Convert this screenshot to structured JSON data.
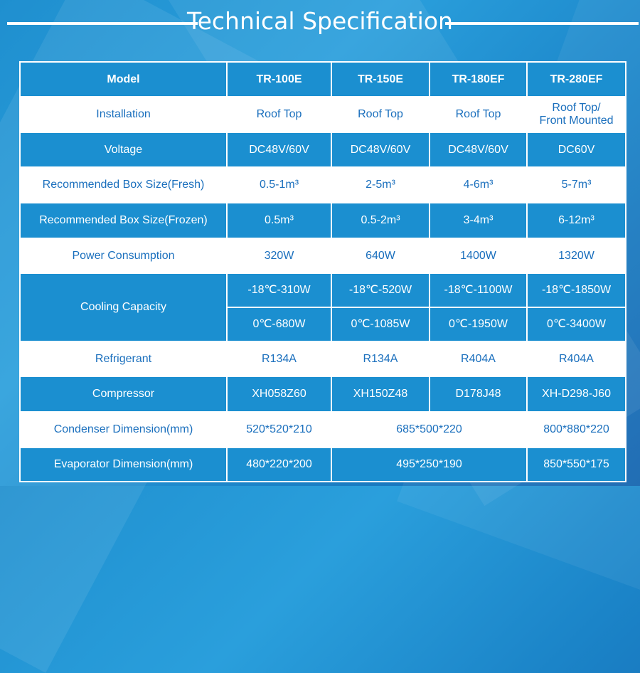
{
  "header": {
    "title": "Technical Specification"
  },
  "table": {
    "columns": [
      "Model",
      "TR-100E",
      "TR-150E",
      "TR-180EF",
      "TR-280EF"
    ],
    "installation": {
      "label": "Installation",
      "values": [
        "Roof Top",
        "Roof Top",
        "Roof Top",
        "Roof Top/\nFront Mounted"
      ]
    },
    "voltage": {
      "label": "Voltage",
      "values": [
        "DC48V/60V",
        "DC48V/60V",
        "DC48V/60V",
        "DC60V"
      ]
    },
    "box_fresh": {
      "label": "Recommended Box Size(Fresh)",
      "values": [
        "0.5-1m³",
        "2-5m³",
        "4-6m³",
        "5-7m³"
      ]
    },
    "box_frozen": {
      "label": "Recommended Box Size(Frozen)",
      "values": [
        "0.5m³",
        "0.5-2m³",
        "3-4m³",
        "6-12m³"
      ]
    },
    "power": {
      "label": "Power Consumption",
      "values": [
        "320W",
        "640W",
        "1400W",
        "1320W"
      ]
    },
    "cooling": {
      "label": "Cooling Capacity",
      "minus18": [
        "-18℃-310W",
        "-18℃-520W",
        "-18℃-1100W",
        "-18℃-1850W"
      ],
      "zero": [
        "0℃-680W",
        "0℃-1085W",
        "0℃-1950W",
        "0℃-3400W"
      ]
    },
    "refrigerant": {
      "label": "Refrigerant",
      "values": [
        "R134A",
        "R134A",
        "R404A",
        "R404A"
      ]
    },
    "compressor": {
      "label": "Compressor",
      "values": [
        "XH058Z60",
        "XH150Z48",
        "D178J48",
        "XH-D298-J60"
      ]
    },
    "condenser": {
      "label": "Condenser Dimension(mm)",
      "v1": "520*520*210",
      "v23": "685*500*220",
      "v4": "800*880*220"
    },
    "evaporator": {
      "label": "Evaporator Dimension(mm)",
      "v1": "480*220*200",
      "v23": "495*250*190",
      "v4": "850*550*175"
    }
  }
}
